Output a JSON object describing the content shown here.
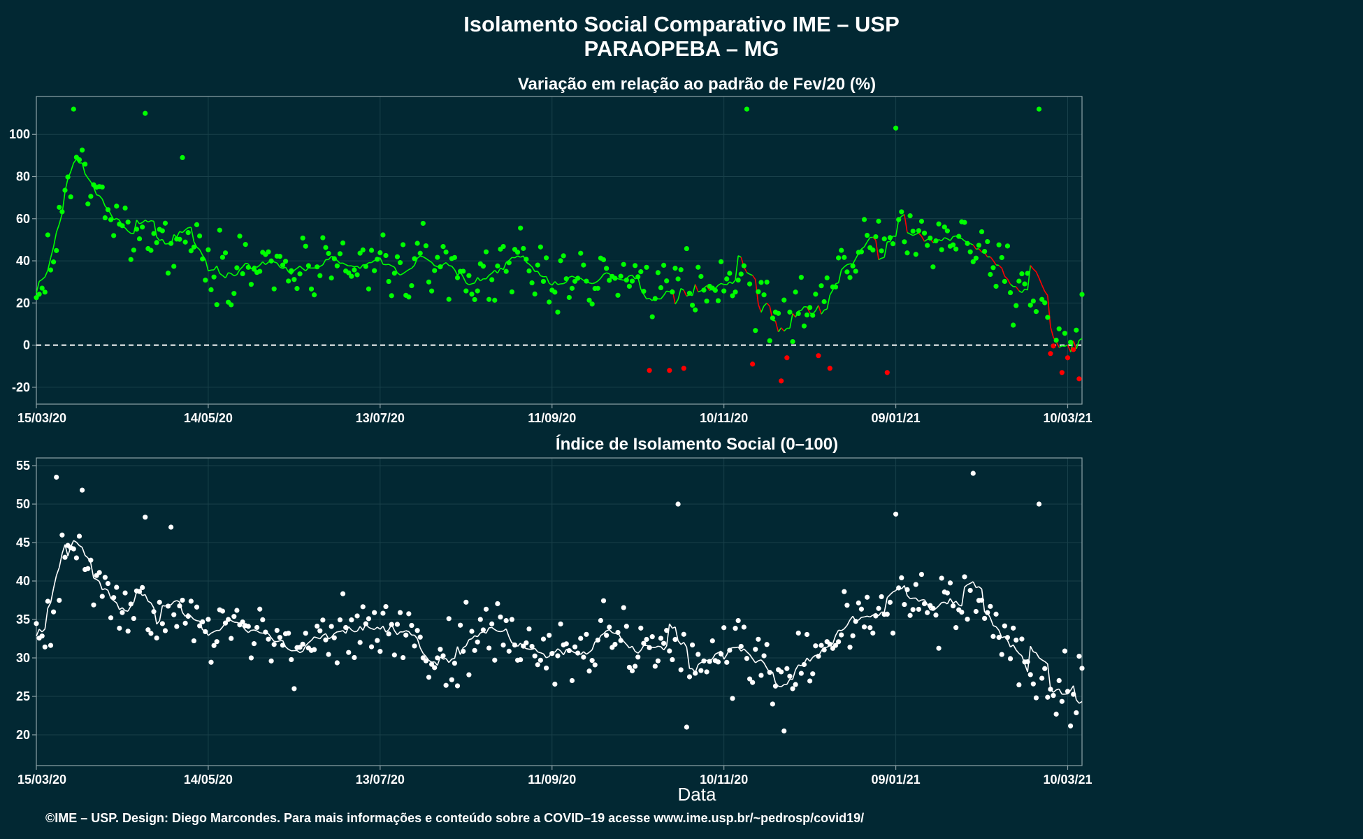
{
  "header": {
    "title_line1": "Isolamento Social Comparativo IME – USP",
    "title_line2": "PARAOPEBA – MG"
  },
  "footer": {
    "credit": "©IME – USP. Design: Diego Marcondes. Para mais informações e conteúdo sobre a COVID–19 acesse www.ime.usp.br/~pedrosp/covid19/"
  },
  "colors": {
    "background": "#022833",
    "positive": "#00ff00",
    "negative": "#ff0000",
    "index": "#ffffff",
    "grid": "#19404a",
    "axis": "#8fa3a8"
  },
  "chart_data": [
    {
      "type": "scatter",
      "title": "Variação em relação ao padrão de Fev/20 (%)",
      "xlabel": "",
      "ylabel": "",
      "x_range": [
        "2020-03-15",
        "2021-03-15"
      ],
      "ylim": [
        -28,
        118
      ],
      "yticks": [
        -20,
        0,
        20,
        40,
        60,
        80,
        100
      ],
      "xticks": [
        "15/03/20",
        "14/05/20",
        "13/07/20",
        "11/09/20",
        "10/11/20",
        "09/01/21",
        "10/03/21"
      ],
      "reference_line": 0,
      "grid": true,
      "legend": "none",
      "anchors": [
        [
          "2020-03-15",
          17
        ],
        [
          "2020-03-22",
          50
        ],
        [
          "2020-03-28",
          86
        ],
        [
          "2020-04-04",
          75
        ],
        [
          "2020-04-10",
          58
        ],
        [
          "2020-04-20",
          55
        ],
        [
          "2020-05-01",
          48
        ],
        [
          "2020-05-08",
          54
        ],
        [
          "2020-05-14",
          40
        ],
        [
          "2020-05-25",
          38
        ],
        [
          "2020-06-10",
          36
        ],
        [
          "2020-06-25",
          33
        ],
        [
          "2020-07-10",
          38
        ],
        [
          "2020-07-25",
          35
        ],
        [
          "2020-08-02",
          42
        ],
        [
          "2020-08-15",
          28
        ],
        [
          "2020-08-25",
          42
        ],
        [
          "2020-09-05",
          34
        ],
        [
          "2020-09-20",
          30
        ],
        [
          "2020-10-05",
          32
        ],
        [
          "2020-10-20",
          30
        ],
        [
          "2020-11-01",
          25
        ],
        [
          "2020-11-14",
          33
        ],
        [
          "2020-11-28",
          16
        ],
        [
          "2020-12-10",
          18
        ],
        [
          "2020-12-20",
          35
        ],
        [
          "2021-01-02",
          48
        ],
        [
          "2021-01-09",
          57
        ],
        [
          "2021-01-20",
          48
        ],
        [
          "2021-02-01",
          52
        ],
        [
          "2021-02-12",
          45
        ],
        [
          "2021-02-20",
          30
        ],
        [
          "2021-03-01",
          15
        ],
        [
          "2021-03-08",
          5
        ],
        [
          "2021-03-15",
          10
        ]
      ],
      "outliers": [
        [
          "2020-03-28",
          112
        ],
        [
          "2020-04-22",
          110
        ],
        [
          "2020-05-05",
          89
        ],
        [
          "2020-11-18",
          112
        ],
        [
          "2021-01-09",
          103
        ],
        [
          "2021-02-28",
          112
        ],
        [
          "2020-10-15",
          -12
        ],
        [
          "2020-10-22",
          -12
        ],
        [
          "2020-10-27",
          -11
        ],
        [
          "2020-11-20",
          -9
        ],
        [
          "2020-11-30",
          -17
        ],
        [
          "2020-12-02",
          -6
        ],
        [
          "2020-12-13",
          -5
        ],
        [
          "2020-12-17",
          -11
        ],
        [
          "2021-01-06",
          -13
        ],
        [
          "2021-03-04",
          -4
        ],
        [
          "2021-03-08",
          -13
        ],
        [
          "2021-03-14",
          -16
        ],
        [
          "2021-03-16",
          -21
        ],
        [
          "2021-03-20",
          -16
        ],
        [
          "2021-03-22",
          -3
        ],
        [
          "2021-03-28",
          -2
        ]
      ]
    },
    {
      "type": "scatter",
      "title": "Índice de Isolamento Social (0–100)",
      "xlabel": "Data",
      "ylabel": "",
      "x_range": [
        "2020-03-15",
        "2021-03-15"
      ],
      "ylim": [
        16,
        56
      ],
      "yticks": [
        20,
        25,
        30,
        35,
        40,
        45,
        50,
        55
      ],
      "xticks": [
        "15/03/20",
        "14/05/20",
        "13/07/20",
        "11/09/20",
        "10/11/20",
        "09/01/21",
        "10/03/21"
      ],
      "grid": true,
      "legend": "none",
      "anchors": [
        [
          "2020-03-18",
          32
        ],
        [
          "2020-03-26",
          44.5
        ],
        [
          "2020-04-01",
          43
        ],
        [
          "2020-04-08",
          38
        ],
        [
          "2020-04-15",
          37
        ],
        [
          "2020-04-25",
          36
        ],
        [
          "2020-05-01",
          35
        ],
        [
          "2020-05-08",
          37
        ],
        [
          "2020-05-14",
          33.5
        ],
        [
          "2020-06-01",
          33
        ],
        [
          "2020-06-20",
          32
        ],
        [
          "2020-07-10",
          33.5
        ],
        [
          "2020-07-25",
          34.5
        ],
        [
          "2020-08-05",
          30
        ],
        [
          "2020-08-15",
          33.5
        ],
        [
          "2020-09-01",
          32.5
        ],
        [
          "2020-09-15",
          31.5
        ],
        [
          "2020-10-05",
          32.5
        ],
        [
          "2020-10-20",
          31
        ],
        [
          "2020-10-30",
          30
        ],
        [
          "2020-11-14",
          32
        ],
        [
          "2020-11-28",
          27
        ],
        [
          "2020-12-10",
          29.5
        ],
        [
          "2020-12-20",
          32.5
        ],
        [
          "2021-01-02",
          35
        ],
        [
          "2021-01-09",
          38
        ],
        [
          "2021-01-20",
          36
        ],
        [
          "2021-02-01",
          37
        ],
        [
          "2021-02-12",
          34
        ],
        [
          "2021-02-20",
          31.5
        ],
        [
          "2021-03-01",
          27
        ],
        [
          "2021-03-08",
          25
        ],
        [
          "2021-03-15",
          26
        ],
        [
          "2021-03-20",
          21
        ]
      ],
      "outliers": [
        [
          "2020-03-22",
          53.5
        ],
        [
          "2020-04-22",
          48.3
        ],
        [
          "2020-05-01",
          47
        ],
        [
          "2020-10-25",
          50
        ],
        [
          "2021-02-05",
          54
        ],
        [
          "2021-02-28",
          50
        ],
        [
          "2021-01-09",
          48.7
        ],
        [
          "2021-03-16",
          18
        ],
        [
          "2020-12-01",
          20.5
        ],
        [
          "2020-10-28",
          21
        ]
      ]
    }
  ]
}
